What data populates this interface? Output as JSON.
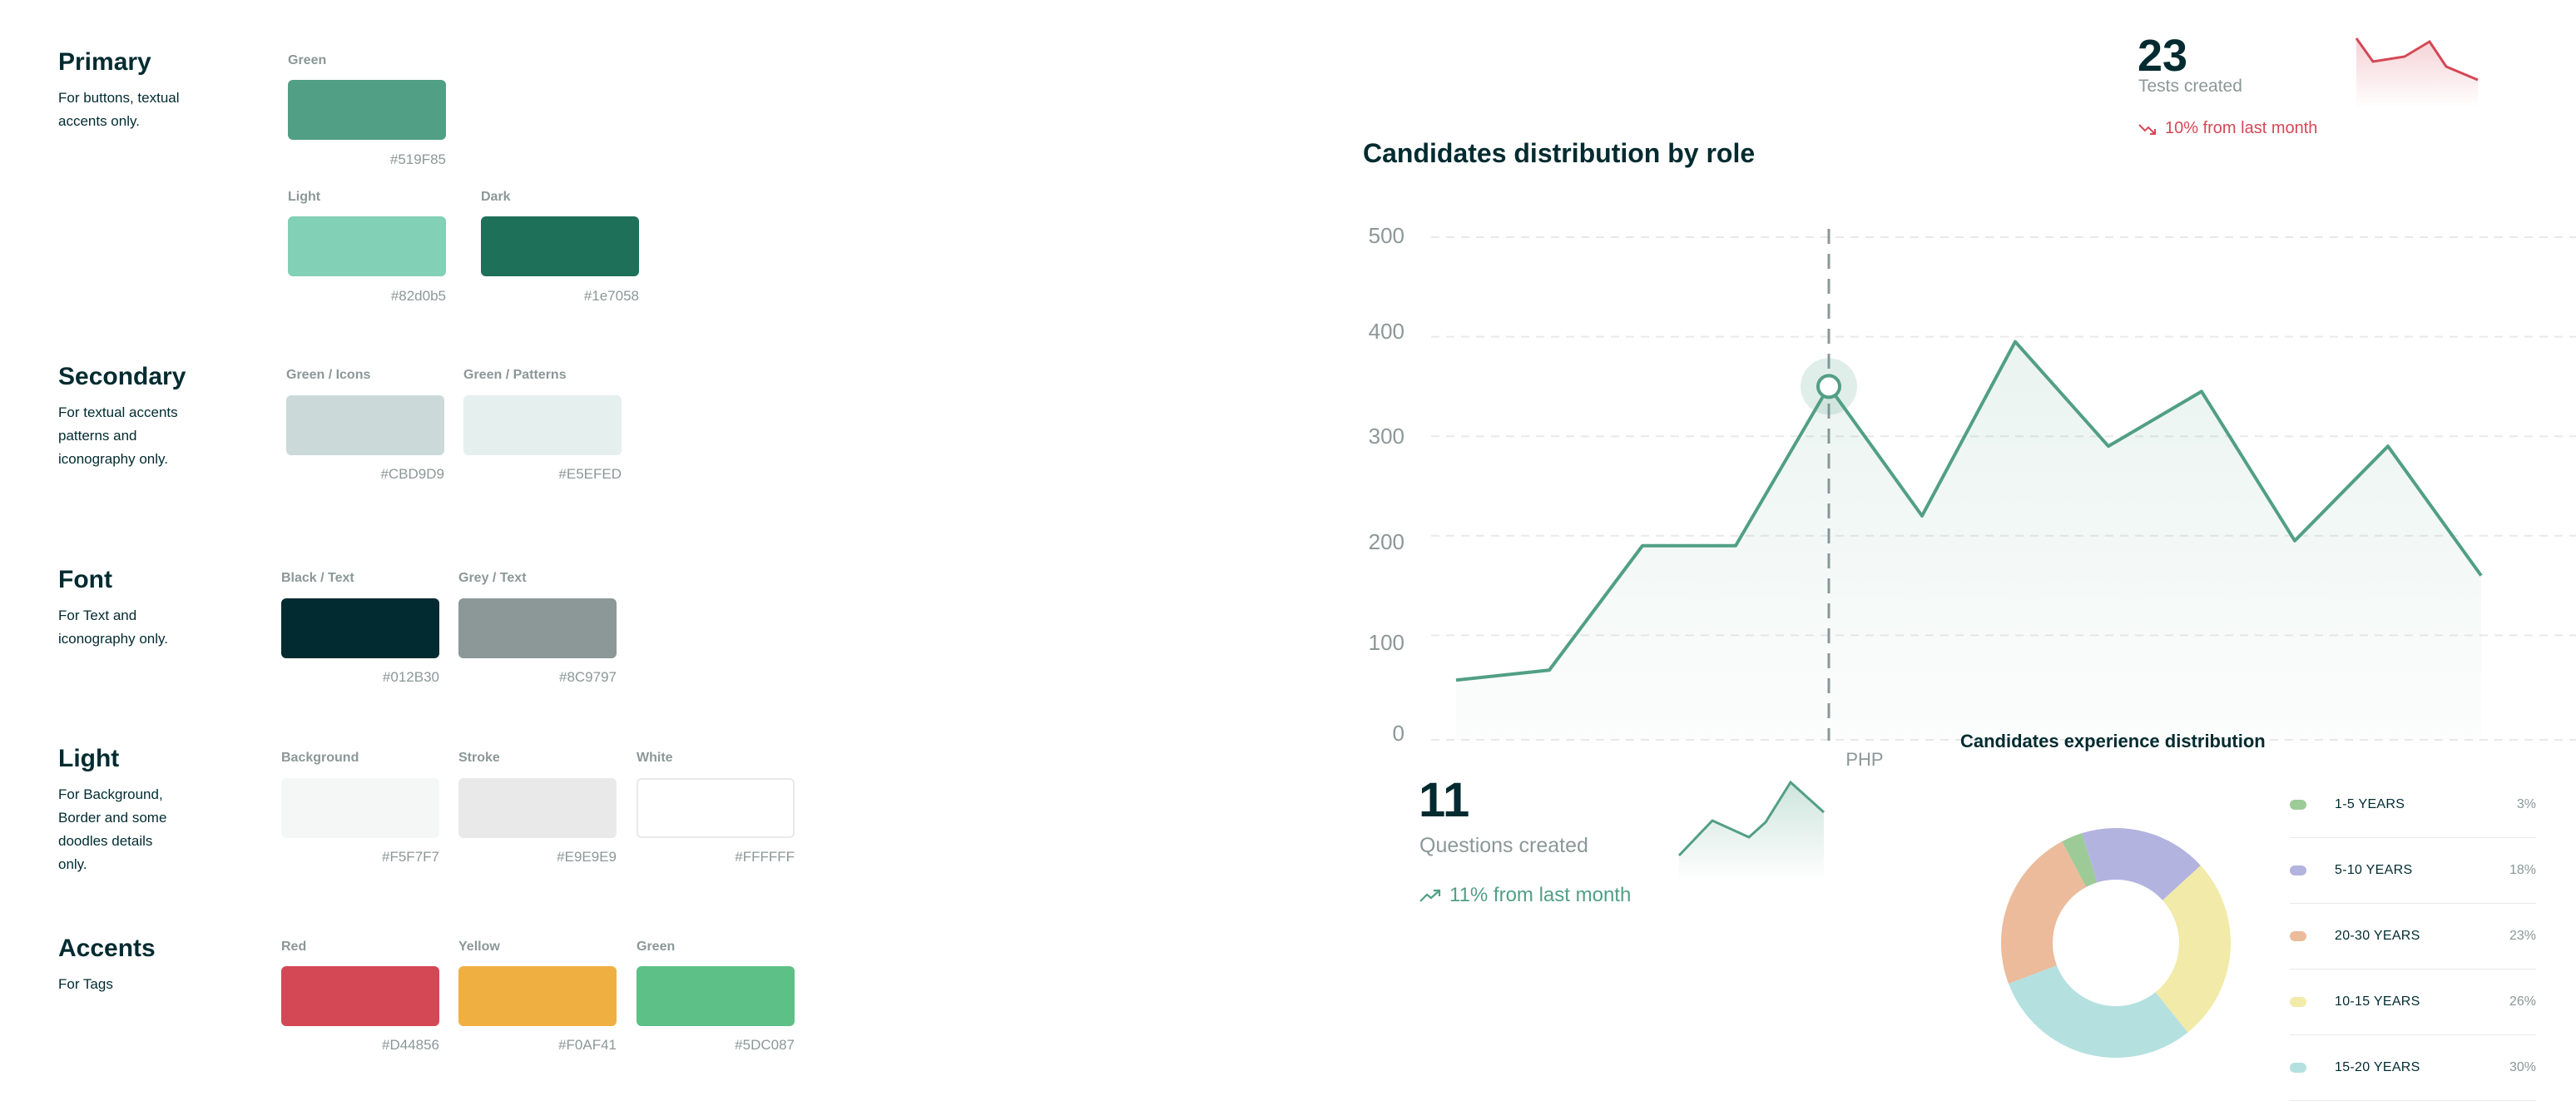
{
  "palette": {
    "primary": {
      "title": "Primary",
      "desc": "For buttons, textual accents only.",
      "swatches": [
        {
          "label": "Green",
          "hex": "#519F85",
          "color": "#519F85"
        },
        {
          "label": "Light",
          "hex": "#82d0b5",
          "color": "#82d0b5"
        },
        {
          "label": "Dark",
          "hex": "#1e7058",
          "color": "#1e7058"
        }
      ]
    },
    "secondary": {
      "title": "Secondary",
      "desc": "For textual accents patterns and iconography only.",
      "swatches": [
        {
          "label": "Green / Icons",
          "hex": "#CBD9D9",
          "color": "#CBD9D9"
        },
        {
          "label": "Green / Patterns",
          "hex": "#E5EFED",
          "color": "#E5EFED"
        }
      ]
    },
    "font": {
      "title": "Font",
      "desc": "For Text and iconography only.",
      "swatches": [
        {
          "label": "Black / Text",
          "hex": "#012B30",
          "color": "#012B30"
        },
        {
          "label": "Grey / Text",
          "hex": "#8C9797",
          "color": "#8C9797"
        }
      ]
    },
    "light": {
      "title": "Light",
      "desc": "For Background, Border and some doodles details only.",
      "swatches": [
        {
          "label": "Background",
          "hex": "#F5F7F7",
          "color": "#F5F7F7"
        },
        {
          "label": "Stroke",
          "hex": "#E9E9E9",
          "color": "#E9E9E9"
        },
        {
          "label": "White",
          "hex": "#FFFFFF",
          "color": "#FFFFFF"
        }
      ]
    },
    "accents": {
      "title": "Accents",
      "desc": "For Tags",
      "swatches": [
        {
          "label": "Red",
          "hex": "#D44856",
          "color": "#D44856"
        },
        {
          "label": "Yellow",
          "hex": "#F0AF41",
          "color": "#F0AF41"
        },
        {
          "label": "Green",
          "hex": "#5DC087",
          "color": "#5DC087"
        }
      ]
    }
  },
  "tests_card": {
    "value": "23",
    "label": "Tests created",
    "change": "10% from last month",
    "trend": "down",
    "trend_icon": "trending-down-icon",
    "color": "#D44856"
  },
  "questions_card": {
    "value": "11",
    "label": "Questions created",
    "change": "11% from last month",
    "trend": "up",
    "trend_icon": "trending-up-icon",
    "color": "#519F85"
  },
  "chart_data": [
    {
      "type": "area",
      "title": "Candidates distribution by role",
      "yticks": [
        "500",
        "400",
        "300",
        "200",
        "100",
        "0"
      ],
      "ylim": [
        0,
        500
      ],
      "x_label_visible": "PHP",
      "values": [
        55,
        65,
        190,
        190,
        350,
        220,
        395,
        290,
        345,
        195,
        290,
        160
      ],
      "highlight_index": 4,
      "grid": true,
      "line_color": "#519F85"
    },
    {
      "type": "pie",
      "title": "Candidates experience distribution",
      "labels": [
        "1-5 YEARS",
        "5-10 YEARS",
        "20-30 YEARS",
        "10-15 YEARS",
        "15-20 YEARS"
      ],
      "values": [
        3,
        18,
        23,
        26,
        30
      ],
      "value_labels": [
        "3%",
        "18%",
        "23%",
        "26%",
        "30%"
      ],
      "colors": [
        "#9DCB98",
        "#B3B3E0",
        "#EBBB9B",
        "#F2EAA8",
        "#B4E0E0"
      ]
    }
  ]
}
